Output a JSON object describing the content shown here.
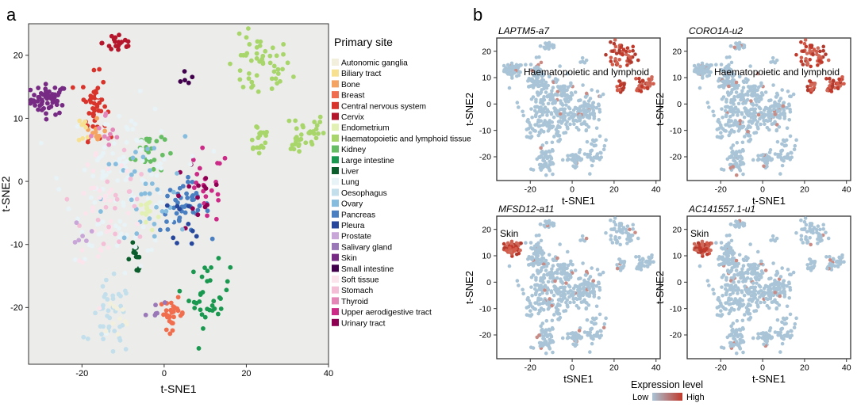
{
  "panel_a": {
    "letter": "a",
    "legend_title": "Primary site",
    "legend": [
      {
        "label": "Autonomic ganglia",
        "color": "#f2f0dc"
      },
      {
        "label": "Biliary tract",
        "color": "#f7e08f"
      },
      {
        "label": "Bone",
        "color": "#f4a460"
      },
      {
        "label": "Breast",
        "color": "#f06e4d"
      },
      {
        "label": "Central nervous system",
        "color": "#d9342b"
      },
      {
        "label": "Cervix",
        "color": "#b5162c"
      },
      {
        "label": "Endometrium",
        "color": "#e3f0b4"
      },
      {
        "label": "Haematopoietic and lymphoid tissue",
        "color": "#a8d66b"
      },
      {
        "label": "Kidney",
        "color": "#66bd63"
      },
      {
        "label": "Large intestine",
        "color": "#1a9850"
      },
      {
        "label": "Liver",
        "color": "#0b5d2c"
      },
      {
        "label": "Lung",
        "color": "#e8f3f7"
      },
      {
        "label": "Oesophagus",
        "color": "#c3dfeb"
      },
      {
        "label": "Ovary",
        "color": "#86bdde"
      },
      {
        "label": "Pancreas",
        "color": "#4a7fc1"
      },
      {
        "label": "Pleura",
        "color": "#26479b"
      },
      {
        "label": "Prostate",
        "color": "#c8a6d8"
      },
      {
        "label": "Salivary gland",
        "color": "#9a78b8"
      },
      {
        "label": "Skin",
        "color": "#762a83"
      },
      {
        "label": "Small intestine",
        "color": "#40004b"
      },
      {
        "label": "Soft tissue",
        "color": "#fbe4ec"
      },
      {
        "label": "Stomach",
        "color": "#f4bfd6"
      },
      {
        "label": "Thyroid",
        "color": "#e586b9"
      },
      {
        "label": "Upper aerodigestive tract",
        "color": "#cc2a87"
      },
      {
        "label": "Urinary tract",
        "color": "#8e0152"
      }
    ]
  },
  "panel_b": {
    "letter": "b",
    "legend_title": "Expression level",
    "legend_low": "Low",
    "legend_high": "High",
    "low_color": "#a9c4d6",
    "high_color": "#c0392b"
  },
  "chart_data": [
    {
      "type": "scatter",
      "title": "",
      "xlabel": "t-SNE1",
      "ylabel": "t-SNE2",
      "xlim": [
        -33,
        40
      ],
      "ylim": [
        -29,
        25
      ],
      "xticks": [
        -20,
        0,
        20,
        40
      ],
      "yticks": [
        -20,
        -10,
        0,
        10,
        20
      ],
      "background": "#ececea",
      "color_by": "Primary site",
      "clusters": [
        {
          "site": "Skin",
          "x": -28,
          "y": 13,
          "sx": 2.2,
          "sy": 1.2,
          "n": 55
        },
        {
          "site": "Haematopoietic and lymphoid tissue",
          "x": 23,
          "y": 18,
          "sx": 4,
          "sy": 2.5,
          "n": 50
        },
        {
          "site": "Haematopoietic and lymphoid tissue",
          "x": 35,
          "y": 8,
          "sx": 2,
          "sy": 1.5,
          "n": 25
        },
        {
          "site": "Haematopoietic and lymphoid tissue",
          "x": 23,
          "y": 7,
          "sx": 1.5,
          "sy": 1.5,
          "n": 20
        },
        {
          "site": "Haematopoietic and lymphoid tissue",
          "x": 33,
          "y": 6,
          "sx": 1,
          "sy": 1,
          "n": 10
        },
        {
          "site": "Central nervous system",
          "x": -17,
          "y": 12,
          "sx": 1.5,
          "sy": 2.5,
          "n": 45
        },
        {
          "site": "Kidney",
          "x": -4,
          "y": 5,
          "sx": 2,
          "sy": 2,
          "n": 25
        },
        {
          "site": "Large intestine",
          "x": 11,
          "y": -18,
          "sx": 2.5,
          "sy": 2.5,
          "n": 35
        },
        {
          "site": "Breast",
          "x": 2,
          "y": -21,
          "sx": 1.5,
          "sy": 1.2,
          "n": 30
        },
        {
          "site": "Liver",
          "x": -7,
          "y": -12,
          "sx": 1,
          "sy": 1.2,
          "n": 12
        },
        {
          "site": "Pancreas",
          "x": 5,
          "y": -4,
          "sx": 3,
          "sy": 2,
          "n": 45
        },
        {
          "site": "Cervix",
          "x": -11,
          "y": 22,
          "sx": 2,
          "sy": 1,
          "n": 22
        },
        {
          "site": "Upper aerodigestive tract",
          "x": 10,
          "y": -1,
          "sx": 3,
          "sy": 3,
          "n": 20
        },
        {
          "site": "Urinary tract",
          "x": 8,
          "y": -3,
          "sx": 3,
          "sy": 3,
          "n": 15
        },
        {
          "site": "Oesophagus",
          "x": -13,
          "y": -22,
          "sx": 2.5,
          "sy": 3,
          "n": 40
        },
        {
          "site": "Lung",
          "x": -10,
          "y": 0,
          "sx": 7,
          "sy": 6,
          "n": 120
        },
        {
          "site": "Ovary",
          "x": -5,
          "y": -3,
          "sx": 5,
          "sy": 5,
          "n": 35
        },
        {
          "site": "Endometrium",
          "x": -4,
          "y": -5,
          "sx": 1.5,
          "sy": 1.5,
          "n": 15
        },
        {
          "site": "Bone",
          "x": -17,
          "y": 8,
          "sx": 1.5,
          "sy": 1.5,
          "n": 10
        },
        {
          "site": "Biliary tract",
          "x": -19,
          "y": 8,
          "sx": 1,
          "sy": 1.5,
          "n": 8
        },
        {
          "site": "Soft tissue",
          "x": -15,
          "y": -3,
          "sx": 4,
          "sy": 6,
          "n": 35
        },
        {
          "site": "Thyroid",
          "x": -14,
          "y": 7,
          "sx": 2,
          "sy": 2,
          "n": 10
        },
        {
          "site": "Stomach",
          "x": -12,
          "y": -4,
          "sx": 4,
          "sy": 5,
          "n": 20
        },
        {
          "site": "Prostate",
          "x": -20,
          "y": -8,
          "sx": 1,
          "sy": 1,
          "n": 6
        },
        {
          "site": "Salivary gland",
          "x": -2,
          "y": -20,
          "sx": 1,
          "sy": 1,
          "n": 6
        },
        {
          "site": "Pleura",
          "x": 6,
          "y": -6,
          "sx": 2,
          "sy": 2,
          "n": 10
        },
        {
          "site": "Small intestine",
          "x": 5,
          "y": 17,
          "sx": 1,
          "sy": 1,
          "n": 5
        },
        {
          "site": "Autonomic ganglia",
          "x": -12,
          "y": -22,
          "sx": 2,
          "sy": 2,
          "n": 10
        }
      ]
    },
    {
      "type": "scatter",
      "title": "LAPTM5-a7",
      "xlabel": "t-SNE1",
      "ylabel": "t-SNE2",
      "annotation": "Haematopoietic and lymphoid",
      "high_region": "Haematopoietic and lymphoid tissue",
      "xlim": [
        -36,
        42
      ],
      "ylim": [
        -29,
        25
      ],
      "xticks": [
        -20,
        0,
        20,
        40
      ],
      "yticks": [
        -20,
        -10,
        0,
        10,
        20
      ]
    },
    {
      "type": "scatter",
      "title": "CORO1A-u2",
      "xlabel": "t-SNE1",
      "ylabel": "t-SNE2",
      "annotation": "Haematopoietic and lymphoid",
      "high_region": "Haematopoietic and lymphoid tissue",
      "xlim": [
        -36,
        42
      ],
      "ylim": [
        -29,
        25
      ],
      "xticks": [
        -20,
        0,
        20,
        40
      ],
      "yticks": [
        -20,
        -10,
        0,
        10,
        20
      ]
    },
    {
      "type": "scatter",
      "title": "MFSD12-a11",
      "xlabel": "tSNE1",
      "ylabel": "t-SNE2",
      "annotation": "Skin",
      "high_region": "Skin",
      "xlim": [
        -36,
        42
      ],
      "ylim": [
        -29,
        25
      ],
      "xticks": [
        -20,
        0,
        20,
        40
      ],
      "yticks": [
        -20,
        -10,
        0,
        10,
        20
      ]
    },
    {
      "type": "scatter",
      "title": "AC141557.1-u1",
      "xlabel": "t-SNE1",
      "ylabel": "t-SNE2",
      "annotation": "Skin",
      "high_region": "Skin",
      "xlim": [
        -36,
        42
      ],
      "ylim": [
        -29,
        25
      ],
      "xticks": [
        -20,
        0,
        20,
        40
      ],
      "yticks": [
        -20,
        -10,
        0,
        10,
        20
      ]
    }
  ]
}
